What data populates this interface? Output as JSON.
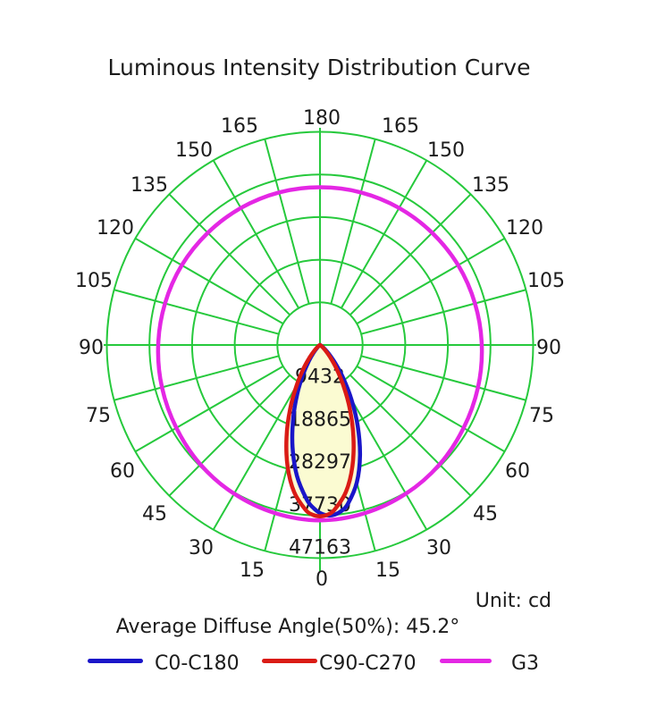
{
  "title": "Luminous Intensity Distribution Curve",
  "unit_label": "Unit: cd",
  "avg_angle_label": "Average Diffuse Angle(50%): 45.2°",
  "legend": [
    {
      "label": "C0-C180",
      "color": "#1a16c9"
    },
    {
      "label": "C90-C270",
      "color": "#da1b15"
    },
    {
      "label": "G3",
      "color": "#e427e4"
    }
  ],
  "chart_data": {
    "type": "polar",
    "title": "Luminous Intensity Distribution Curve",
    "unit": "cd",
    "average_diffuse_angle_50pct_deg": 45.2,
    "grid": {
      "color": "#26c93c",
      "angle_ticks_deg": [
        0,
        15,
        30,
        45,
        60,
        75,
        90,
        105,
        120,
        135,
        150,
        165,
        180
      ],
      "radial_ticks_cd": [
        9432,
        18865,
        28297,
        37730,
        47163
      ],
      "rmax_cd": 47163
    },
    "beam_fill_color": "#fbfbd2",
    "series": [
      {
        "name": "C0-C180",
        "color": "#1a16c9",
        "kind": "beam",
        "profile": [
          [
            -75,
            0
          ],
          [
            -70,
            0
          ],
          [
            -65,
            5
          ],
          [
            -60,
            26
          ],
          [
            -55,
            110
          ],
          [
            -50,
            353
          ],
          [
            -45,
            931
          ],
          [
            -40,
            2100
          ],
          [
            -35,
            4160
          ],
          [
            -30,
            7370
          ],
          [
            -25,
            11820
          ],
          [
            -20,
            17350
          ],
          [
            -15,
            23440
          ],
          [
            -10,
            29380
          ],
          [
            -5,
            34220
          ],
          [
            -2.5,
            35980
          ],
          [
            0,
            37170
          ],
          [
            2.5,
            37750
          ],
          [
            5,
            37680
          ],
          [
            7.5,
            36980
          ],
          [
            10,
            35670
          ],
          [
            15,
            31490
          ],
          [
            20,
            25890
          ],
          [
            25,
            19750
          ],
          [
            30,
            13920
          ],
          [
            35,
            9000
          ],
          [
            40,
            5300
          ],
          [
            45,
            2800
          ],
          [
            50,
            1310
          ],
          [
            55,
            530
          ],
          [
            60,
            180
          ],
          [
            65,
            48
          ],
          [
            70,
            10
          ],
          [
            75,
            0
          ]
        ]
      },
      {
        "name": "C90-C270",
        "color": "#da1b15",
        "kind": "beam",
        "profile": [
          [
            -75,
            0
          ],
          [
            -70,
            2
          ],
          [
            -65,
            16
          ],
          [
            -60,
            74
          ],
          [
            -55,
            254
          ],
          [
            -50,
            710
          ],
          [
            -45,
            1675
          ],
          [
            -40,
            3440
          ],
          [
            -35,
            6300
          ],
          [
            -30,
            10380
          ],
          [
            -25,
            15640
          ],
          [
            -20,
            21650
          ],
          [
            -15,
            27740
          ],
          [
            -10,
            33020
          ],
          [
            -5,
            36620
          ],
          [
            -2.5,
            37580
          ],
          [
            0,
            37900
          ],
          [
            2.5,
            37580
          ],
          [
            5,
            36620
          ],
          [
            10,
            33020
          ],
          [
            15,
            27740
          ],
          [
            20,
            21650
          ],
          [
            25,
            15640
          ],
          [
            30,
            10380
          ],
          [
            35,
            6300
          ],
          [
            40,
            3440
          ],
          [
            45,
            1675
          ],
          [
            50,
            710
          ],
          [
            55,
            254
          ],
          [
            60,
            74
          ],
          [
            65,
            16
          ],
          [
            70,
            2
          ],
          [
            75,
            0
          ]
        ]
      },
      {
        "name": "G3",
        "color": "#e427e4",
        "kind": "closed",
        "angles_deg": [
          0,
          15,
          30,
          45,
          60,
          75,
          90,
          105,
          120,
          135,
          150,
          165,
          180
        ],
        "r_cd": [
          38800,
          38500,
          38000,
          37400,
          36700,
          36200,
          35800,
          35500,
          35300,
          35100,
          35000,
          34950,
          34900
        ]
      }
    ]
  }
}
